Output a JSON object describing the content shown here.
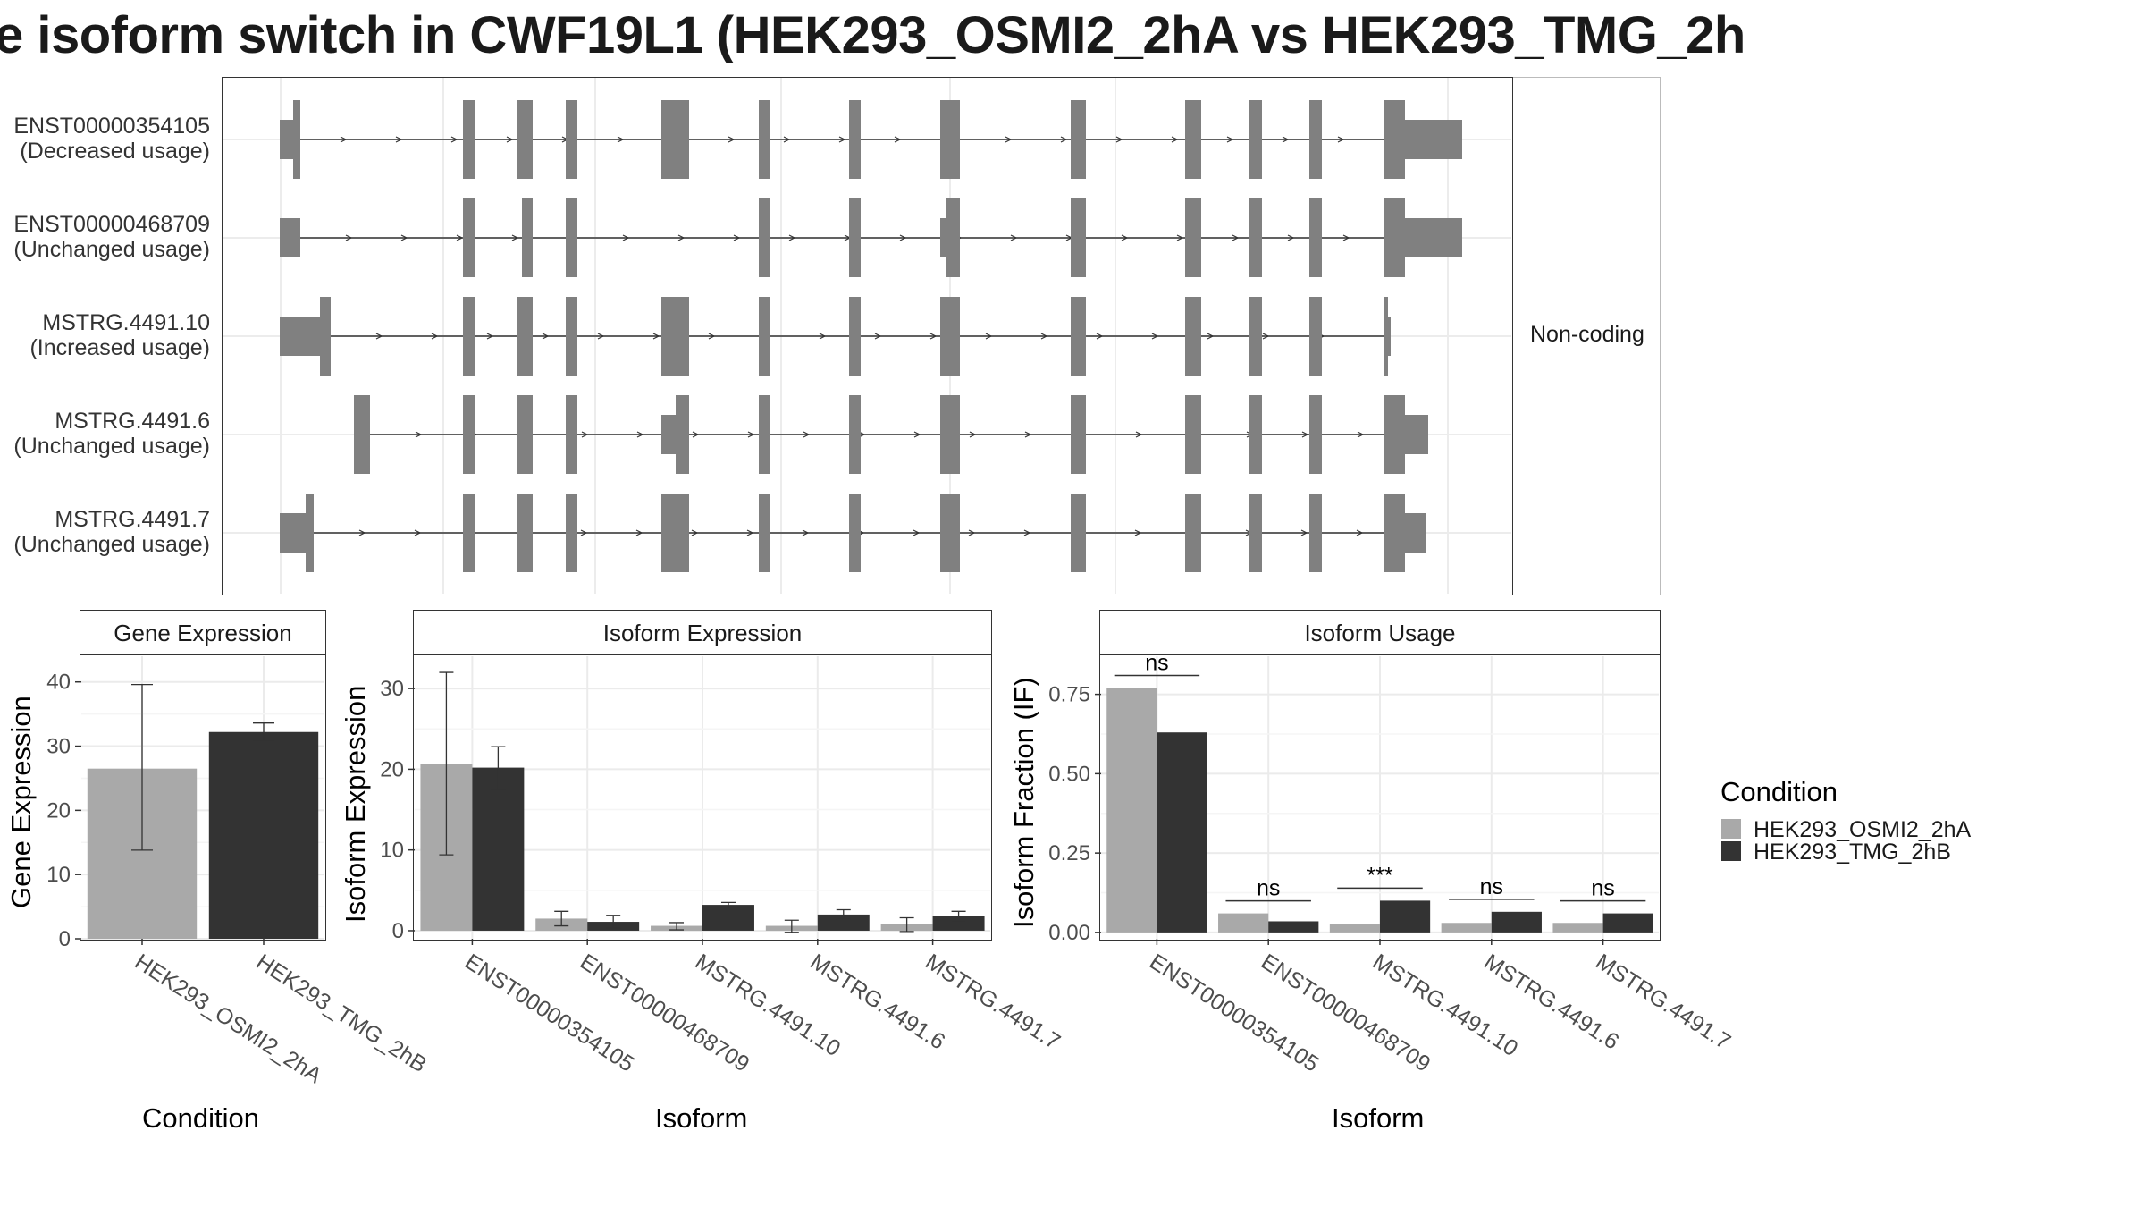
{
  "title": "e isoform switch in CWF19L1 (HEK293_OSMI2_2hA vs HEK293_TMG_2h",
  "structure": {
    "isoforms": [
      {
        "id": "ENST00000354105",
        "status": "(Decreased usage)"
      },
      {
        "id": "ENST00000468709",
        "status": "(Unchanged usage)"
      },
      {
        "id": "MSTRG.4491.10",
        "status": "(Increased usage)"
      },
      {
        "id": "MSTRG.4491.6",
        "status": "(Unchanged usage)"
      },
      {
        "id": "MSTRG.4491.7",
        "status": "(Unchanged usage)"
      }
    ],
    "side_label": "Non-coding"
  },
  "legend": {
    "title": "Condition",
    "items": [
      {
        "label": "HEK293_OSMI2_2hA",
        "color": "#a9a9a9"
      },
      {
        "label": "HEK293_TMG_2hB",
        "color": "#333333"
      }
    ]
  },
  "chart_data": [
    {
      "type": "bar",
      "strip_title": "Gene Expression",
      "xlabel": "Condition",
      "ylabel": "Gene Expression",
      "ylim": [
        0,
        44
      ],
      "yticks": [
        0,
        10,
        20,
        30,
        40
      ],
      "categories": [
        "HEK293_OSMI2_2hA",
        "HEK293_TMG_2hB"
      ],
      "values": [
        26.5,
        32.2
      ],
      "error_low": [
        13.8,
        30.8
      ],
      "error_high": [
        39.6,
        33.6
      ],
      "colors": [
        "#a9a9a9",
        "#333333"
      ]
    },
    {
      "type": "bar",
      "strip_title": "Isoform Expression",
      "xlabel": "Isoform",
      "ylabel": "Isoform Expression",
      "ylim": [
        -1,
        34
      ],
      "yticks": [
        0,
        10,
        20,
        30
      ],
      "categories": [
        "ENST00000354105",
        "ENST00000468709",
        "MSTRG.4491.10",
        "MSTRG.4491.6",
        "MSTRG.4491.7"
      ],
      "series": [
        {
          "name": "HEK293_OSMI2_2hA",
          "values": [
            20.6,
            1.5,
            0.6,
            0.6,
            0.8
          ],
          "error_low": [
            9.4,
            0.6,
            0.1,
            -0.2,
            -0.1
          ],
          "error_high": [
            32.0,
            2.4,
            1.0,
            1.3,
            1.6
          ]
        },
        {
          "name": "HEK293_TMG_2hB",
          "values": [
            20.2,
            1.1,
            3.2,
            2.0,
            1.8
          ],
          "error_low": [
            17.5,
            0.3,
            2.9,
            1.4,
            1.2
          ],
          "error_high": [
            22.8,
            1.9,
            3.5,
            2.6,
            2.4
          ]
        }
      ]
    },
    {
      "type": "bar",
      "strip_title": "Isoform Usage",
      "xlabel": "Isoform",
      "ylabel": "Isoform Fraction (IF)",
      "ylim": [
        -0.02,
        0.87
      ],
      "yticks": [
        0.0,
        0.25,
        0.5,
        0.75
      ],
      "ytick_labels": [
        "0.00",
        "0.25",
        "0.50",
        "0.75"
      ],
      "categories": [
        "ENST00000354105",
        "ENST00000468709",
        "MSTRG.4491.10",
        "MSTRG.4491.6",
        "MSTRG.4491.7"
      ],
      "series": [
        {
          "name": "HEK293_OSMI2_2hA",
          "values": [
            0.77,
            0.06,
            0.025,
            0.03,
            0.03
          ]
        },
        {
          "name": "HEK293_TMG_2hB",
          "values": [
            0.63,
            0.035,
            0.1,
            0.065,
            0.06
          ]
        }
      ],
      "significance": [
        "ns",
        "ns",
        "***",
        "ns",
        "ns"
      ]
    }
  ]
}
